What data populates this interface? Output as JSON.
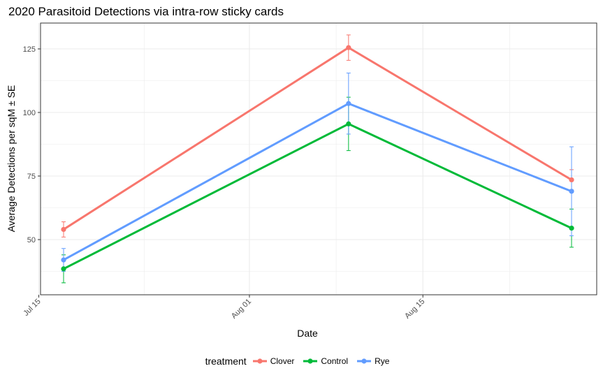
{
  "chart_data": {
    "type": "line",
    "title": "2020 Parasitoid Detections via intra-row sticky cards",
    "xlabel": "Date",
    "ylabel": "Average Detections per sqM ± SE",
    "x_ticks": [
      "Jul 15",
      "Aug 01",
      "Aug 15"
    ],
    "y_ticks": [
      50,
      75,
      100,
      125
    ],
    "x": [
      "2020-07-17",
      "2020-08-09",
      "2020-08-27"
    ],
    "series": [
      {
        "name": "Clover",
        "color": "#F8766D",
        "values": [
          54,
          125.5,
          73.5
        ],
        "se": [
          3,
          5,
          4
        ]
      },
      {
        "name": "Control",
        "color": "#00BA38",
        "values": [
          38.5,
          95.5,
          54.5
        ],
        "se": [
          5.5,
          10.5,
          7.5
        ]
      },
      {
        "name": "Rye",
        "color": "#619CFF",
        "values": [
          42,
          103.5,
          69
        ],
        "se": [
          4.5,
          12,
          17.5
        ]
      }
    ],
    "legend": {
      "title": "treatment",
      "position": "bottom"
    },
    "grid": true
  }
}
